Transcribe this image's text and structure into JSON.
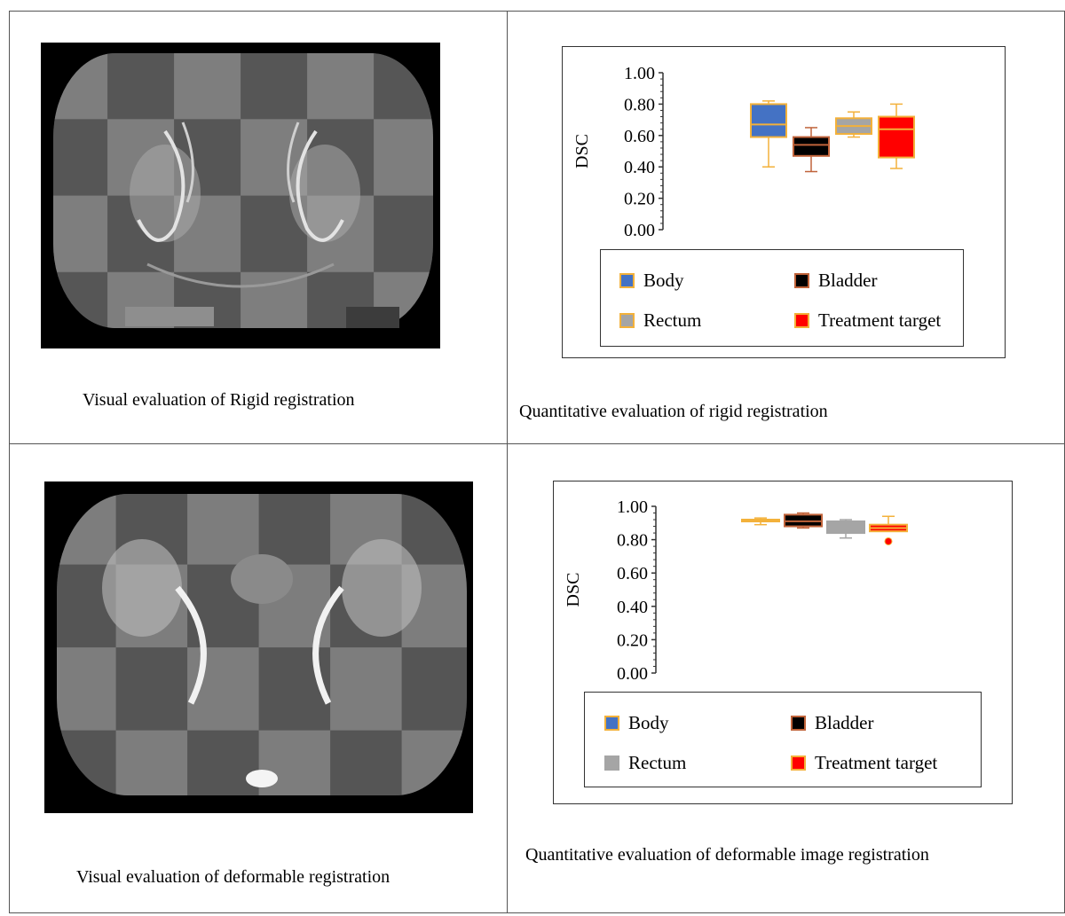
{
  "panels": [
    {
      "id": "rigid",
      "visual_caption": "Visual evaluation of Rigid registration",
      "quant_caption": "Quantitative evaluation of  rigid registration"
    },
    {
      "id": "deformable",
      "visual_caption": "Visual evaluation of deformable registration",
      "quant_caption": "Quantitative evaluation of deformable image registration"
    }
  ],
  "legend": [
    {
      "label": "Body",
      "color": "#4472c4"
    },
    {
      "label": "Bladder",
      "color": "#000000"
    },
    {
      "label": "Rectum",
      "color": "#a5a5a5"
    },
    {
      "label": "Treatment target",
      "color": "#ff0000"
    }
  ],
  "chart_data": [
    {
      "type": "box",
      "ylabel": "DSC",
      "ylim": [
        0,
        1
      ],
      "yticks": [
        "0.00",
        "0.20",
        "0.40",
        "0.60",
        "0.80",
        "1.00"
      ],
      "series": [
        {
          "name": "Body",
          "color": "#4472c4",
          "edge": "#f3b13a",
          "min": 0.4,
          "q1": 0.59,
          "median": 0.67,
          "q3": 0.8,
          "max": 0.82
        },
        {
          "name": "Bladder",
          "color": "#000000",
          "edge": "#c0633a",
          "min": 0.37,
          "q1": 0.47,
          "median": 0.54,
          "q3": 0.59,
          "max": 0.65
        },
        {
          "name": "Rectum",
          "color": "#a5a5a5",
          "edge": "#f3b13a",
          "min": 0.59,
          "q1": 0.61,
          "median": 0.66,
          "q3": 0.71,
          "max": 0.75
        },
        {
          "name": "Treatment target",
          "color": "#ff0000",
          "edge": "#f3b13a",
          "min": 0.39,
          "q1": 0.46,
          "median": 0.64,
          "q3": 0.72,
          "max": 0.8
        }
      ]
    },
    {
      "type": "box",
      "ylabel": "DSC",
      "ylim": [
        0,
        1
      ],
      "yticks": [
        "0.00",
        "0.20",
        "0.40",
        "0.60",
        "0.80",
        "1.00"
      ],
      "series": [
        {
          "name": "Body",
          "color": "#4472c4",
          "edge": "#f3b13a",
          "min": 0.89,
          "q1": 0.91,
          "median": 0.92,
          "q3": 0.92,
          "max": 0.93
        },
        {
          "name": "Bladder",
          "color": "#000000",
          "edge": "#c0633a",
          "min": 0.87,
          "q1": 0.88,
          "median": 0.91,
          "q3": 0.95,
          "max": 0.96
        },
        {
          "name": "Rectum",
          "color": "#a5a5a5",
          "edge": "#a5a5a5",
          "min": 0.81,
          "q1": 0.84,
          "median": 0.88,
          "q3": 0.91,
          "max": 0.92
        },
        {
          "name": "Treatment target",
          "color": "#ff0000",
          "edge": "#f3b13a",
          "min": 0.85,
          "q1": 0.85,
          "median": 0.87,
          "q3": 0.89,
          "max": 0.94,
          "outliers": [
            0.79
          ]
        }
      ]
    }
  ]
}
